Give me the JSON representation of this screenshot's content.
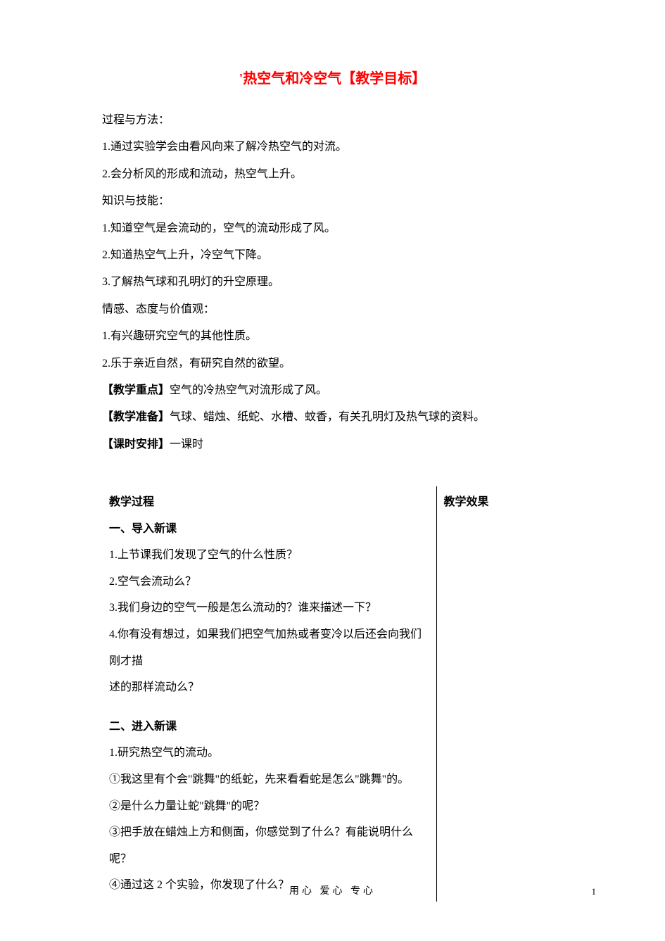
{
  "title": "'热空气和冷空气【教学目标】",
  "title_color": "#ff0000",
  "body_color": "#000000",
  "font_size_title": 20,
  "font_size_body": 16,
  "background_color": "#ffffff",
  "intro": {
    "h_process": "过程与方法：",
    "p1": "1.通过实验学会由看风向来了解冷热空气的对流。",
    "p2": "2.会分析风的形成和流动，热空气上升。",
    "h_knowledge": "知识与技能：",
    "k1": "1.知道空气是会流动的，空气的流动形成了风。",
    "k2": "2.知道热空气上升，冷空气下降。",
    "k3": "3.了解热气球和孔明灯的升空原理。",
    "h_emotion": "情感、态度与价值观：",
    "e1": "1.有兴趣研究空气的其他性质。",
    "e2": "2.乐于亲近自然，有研究自然的欲望。",
    "focus_label": "【教学重点】",
    "focus_text": "空气的冷热空气对流形成了风。",
    "prep_label": "【教学准备】",
    "prep_text": "气球、蜡烛、纸蛇、水槽、蚊香，有关孔明灯及热气球的资料。",
    "time_label": "【课时安排】",
    "time_text": "一课时"
  },
  "table": {
    "col1_header": "教学过程",
    "col2_header": "教学效果",
    "s1_title": "一、导入新课",
    "s1_1": "1.上节课我们发现了空气的什么性质？",
    "s1_2": "2.空气会流动么？",
    "s1_3": "3.我们身边的空气一般是怎么流动的？谁来描述一下？",
    "s1_4a": "4.你有没有想过，如果我们把空气加热或者变冷以后还会向我们刚才描",
    "s1_4b": "述的那样流动么？",
    "s2_title": "二、进入新课",
    "s2_1": "1.研究热空气的流动。",
    "s2_2": "①我这里有个会\"跳舞\"的纸蛇，先来看看蛇是怎么\"跳舞\"的。",
    "s2_3": "②是什么力量让蛇\"跳舞\"的呢？",
    "s2_4": "③把手放在蜡烛上方和侧面，你感觉到了什么？有能说明什么呢？",
    "s2_5": "④通过这 2 个实验，你发现了什么？"
  },
  "footer": "用心   爱心   专心",
  "page_number": "1"
}
